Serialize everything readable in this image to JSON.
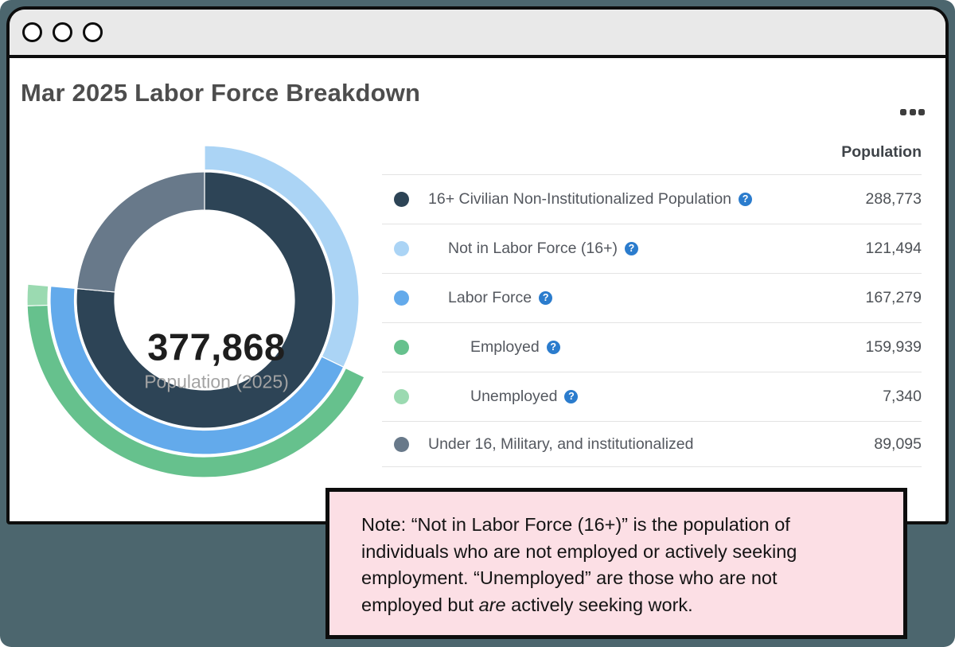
{
  "window": {
    "title": "Mar 2025 Labor Force Breakdown"
  },
  "table": {
    "value_header": "Population",
    "rows": [
      {
        "label": "16+ Civilian Non-Institutionalized Population",
        "value": "288,773",
        "color": "#2d4456",
        "indent": 0,
        "help": true
      },
      {
        "label": "Not in Labor Force (16+)",
        "value": "121,494",
        "color": "#abd4f5",
        "indent": 1,
        "help": true
      },
      {
        "label": "Labor Force",
        "value": "167,279",
        "color": "#63aaeb",
        "indent": 1,
        "help": true
      },
      {
        "label": "Employed",
        "value": "159,939",
        "color": "#66c18d",
        "indent": 2,
        "help": true
      },
      {
        "label": "Unemployed",
        "value": "7,340",
        "color": "#9bdab1",
        "indent": 2,
        "help": true
      },
      {
        "label": "Under 16, Military, and institutionalized",
        "value": "89,095",
        "color": "#68798a",
        "indent": 0,
        "help": false
      }
    ]
  },
  "chart_data": {
    "type": "sunburst",
    "title": "Mar 2025 Labor Force Breakdown",
    "total": 377868,
    "center": {
      "value": "377,868",
      "label": "Population (2025)"
    },
    "rings": [
      {
        "name": "population-split",
        "segments": [
          {
            "label": "16+ Civilian Non-Institutionalized Population",
            "start": 0,
            "value": 288773,
            "color": "#2d4456"
          },
          {
            "label": "Under 16, Military, and institutionalized",
            "start": 288773,
            "value": 89095,
            "color": "#68798a"
          }
        ]
      },
      {
        "name": "labor-force-participation",
        "segments": [
          {
            "label": "Not in Labor Force (16+)",
            "start": 0,
            "value": 121494,
            "color": "#abd4f5"
          },
          {
            "label": "Labor Force",
            "start": 121494,
            "value": 167279,
            "color": "#63aaeb"
          }
        ]
      },
      {
        "name": "employment-status",
        "segments": [
          {
            "label": "Employed",
            "start": 121494,
            "value": 159939,
            "color": "#66c18d"
          },
          {
            "label": "Unemployed",
            "start": 281433,
            "value": 7340,
            "color": "#9bdab1"
          }
        ]
      }
    ]
  },
  "note": {
    "line1": "Note: “Not in Labor Force (16+)” is the population of",
    "line2": "individuals who are not employed or actively seeking",
    "line3": "employment. “Unemployed” are those who are not",
    "line4_pre": "employed but ",
    "line4_italic": "are",
    "line4_post": " actively seeking work."
  },
  "help_icon_glyph": "?",
  "colors": {
    "background": "#4c666e",
    "titlebar": "#e9e9e9",
    "border": "#0d0d0d",
    "note_bg": "#fcdfe5",
    "help_blue": "#2b7ccd",
    "divider": "#e3e3e3"
  }
}
